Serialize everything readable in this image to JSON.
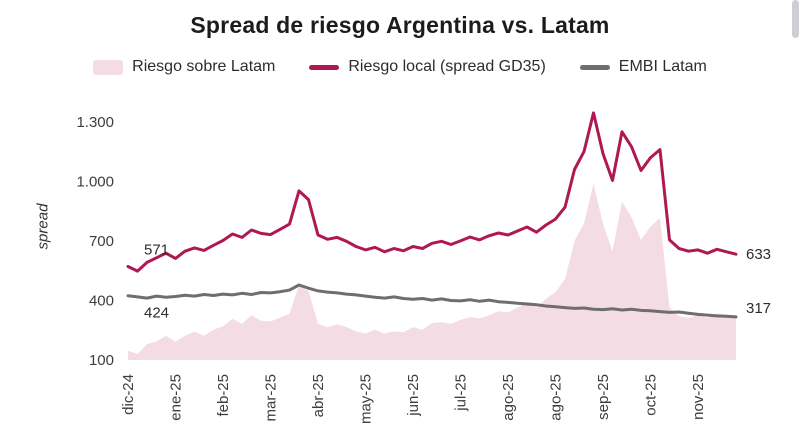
{
  "title": "Spread de riesgo Argentina vs. Latam",
  "legend": [
    {
      "label": "Riesgo sobre Latam",
      "type": "area",
      "color": "#f3dce4"
    },
    {
      "label": "Riesgo local (spread GD35)",
      "type": "line",
      "color": "#b01853"
    },
    {
      "label": "EMBI Latam",
      "type": "line",
      "color": "#716c6e"
    }
  ],
  "chart_data": {
    "type": "line",
    "title": "Spread de riesgo Argentina vs. Latam",
    "ylabel": "spread",
    "ylim": [
      100,
      1400
    ],
    "yticks": [
      100,
      400,
      700,
      1000,
      1300
    ],
    "ytick_labels": [
      "100",
      "400",
      "700",
      "1.000",
      "1.300"
    ],
    "xtick_labels": [
      "dic-24",
      "ene-25",
      "feb-25",
      "mar-25",
      "abr-25",
      "may-25",
      "jun-25",
      "jul-25",
      "ago-25",
      "ago-25",
      "sep-25",
      "oct-25",
      "nov-25"
    ],
    "grid": false,
    "legend_position": "top",
    "series": [
      {
        "id": "local",
        "name": "Riesgo local (spread GD35)",
        "color": "#b01853",
        "start_value": 571,
        "end_value": 633,
        "values": [
          571,
          548,
          592,
          615,
          638,
          612,
          648,
          665,
          652,
          678,
          702,
          735,
          718,
          755,
          738,
          732,
          758,
          785,
          952,
          908,
          730,
          708,
          718,
          698,
          672,
          655,
          668,
          645,
          662,
          650,
          672,
          662,
          688,
          698,
          682,
          700,
          720,
          705,
          726,
          740,
          730,
          750,
          770,
          744,
          780,
          810,
          870,
          1060,
          1150,
          1345,
          1140,
          1005,
          1250,
          1175,
          1055,
          1120,
          1160,
          705,
          662,
          648,
          655,
          638,
          658,
          645,
          633
        ]
      },
      {
        "id": "embi",
        "name": "EMBI Latam",
        "color": "#716c6e",
        "start_value": 424,
        "end_value": 317,
        "values": [
          424,
          418,
          412,
          422,
          416,
          420,
          426,
          422,
          430,
          425,
          432,
          428,
          436,
          430,
          440,
          438,
          444,
          452,
          478,
          462,
          448,
          442,
          438,
          432,
          428,
          422,
          416,
          412,
          418,
          410,
          406,
          410,
          402,
          408,
          400,
          398,
          404,
          396,
          402,
          394,
          390,
          386,
          382,
          378,
          372,
          368,
          364,
          360,
          362,
          356,
          354,
          358,
          352,
          356,
          350,
          348,
          344,
          340,
          342,
          336,
          330,
          326,
          322,
          320,
          317
        ]
      },
      {
        "id": "area",
        "name": "Riesgo sobre Latam",
        "color": "#f3dce4",
        "type": "area",
        "derived": "local_minus_embi"
      }
    ],
    "annotations": [
      {
        "text": "571",
        "anchor": "local-start"
      },
      {
        "text": "424",
        "anchor": "embi-start"
      },
      {
        "text": "633",
        "anchor": "local-end"
      },
      {
        "text": "317",
        "anchor": "embi-end"
      }
    ]
  }
}
